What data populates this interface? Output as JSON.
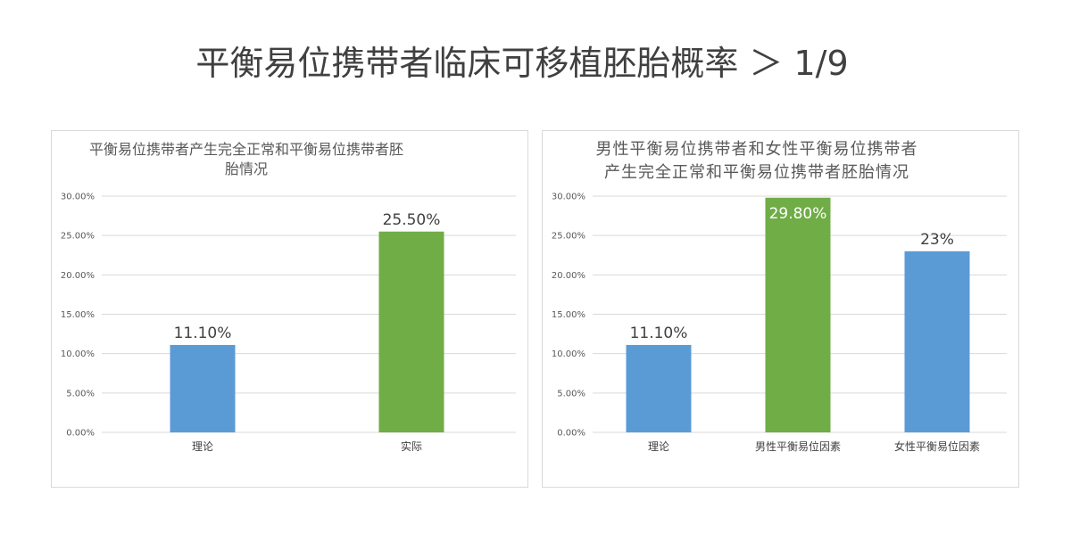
{
  "page": {
    "title": "平衡易位携带者临床可移植胚胎概率 ＞ 1/9"
  },
  "colors": {
    "blue": "#5b9bd5",
    "green": "#70ad47"
  },
  "chart_data": [
    {
      "type": "bar",
      "title_lines": [
        "平衡易位携带者产生完全正常和平衡易位携带者胚",
        "胎情况"
      ],
      "categories": [
        "理论",
        "实际"
      ],
      "values": [
        11.1,
        25.5
      ],
      "data_labels": [
        "11.10%",
        "25.50%"
      ],
      "bar_colors": [
        "#5b9bd5",
        "#70ad47"
      ],
      "ylim": [
        0,
        30
      ],
      "yticks": [
        "0.00%",
        "5.00%",
        "10.00%",
        "15.00%",
        "20.00%",
        "25.00%",
        "30.00%"
      ],
      "grid": true,
      "xlabel": "",
      "ylabel": ""
    },
    {
      "type": "bar",
      "title_lines": [
        "男性平衡易位携带者和女性平衡易位携带者",
        "产生完全正常和平衡易位携带者胚胎情况"
      ],
      "categories": [
        "理论",
        "男性平衡易位因素",
        "女性平衡易位因素"
      ],
      "values": [
        11.1,
        29.8,
        23
      ],
      "data_labels": [
        "11.10%",
        "29.80%",
        "23%"
      ],
      "bar_colors": [
        "#5b9bd5",
        "#70ad47",
        "#5b9bd5"
      ],
      "ylim": [
        0,
        30
      ],
      "yticks": [
        "0.00%",
        "5.00%",
        "10.00%",
        "15.00%",
        "20.00%",
        "25.00%",
        "30.00%"
      ],
      "grid": true,
      "xlabel": "",
      "ylabel": ""
    }
  ]
}
